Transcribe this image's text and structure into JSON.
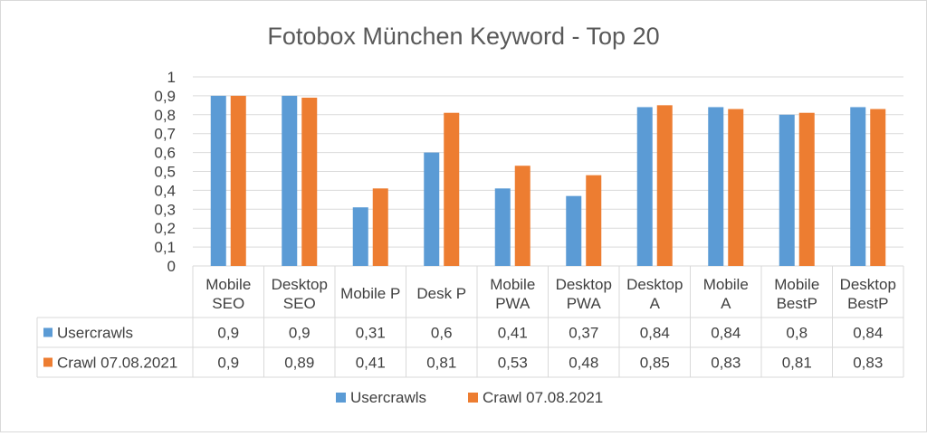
{
  "chart_data": {
    "type": "bar",
    "title": "Fotobox München Keyword - Top 20",
    "categories": [
      [
        "Mobile",
        "SEO"
      ],
      [
        "Desktop",
        "SEO"
      ],
      [
        "Mobile P"
      ],
      [
        "Desk P"
      ],
      [
        "Mobile",
        "PWA"
      ],
      [
        "Desktop",
        "PWA"
      ],
      [
        "Desktop",
        "A"
      ],
      [
        "Mobile",
        "A"
      ],
      [
        "Mobile",
        "BestP"
      ],
      [
        "Desktop",
        "BestP"
      ]
    ],
    "series": [
      {
        "name": "Usercrawls",
        "color": "#5B9BD5",
        "values": [
          0.9,
          0.9,
          0.31,
          0.6,
          0.41,
          0.37,
          0.84,
          0.84,
          0.8,
          0.84
        ],
        "labels": [
          "0,9",
          "0,9",
          "0,31",
          "0,6",
          "0,41",
          "0,37",
          "0,84",
          "0,84",
          "0,8",
          "0,84"
        ]
      },
      {
        "name": "Crawl 07.08.2021",
        "color": "#ED7D31",
        "values": [
          0.9,
          0.89,
          0.41,
          0.81,
          0.53,
          0.48,
          0.85,
          0.83,
          0.81,
          0.83
        ],
        "labels": [
          "0,9",
          "0,89",
          "0,41",
          "0,81",
          "0,53",
          "0,48",
          "0,85",
          "0,83",
          "0,81",
          "0,83"
        ]
      }
    ],
    "ylim": [
      0,
      1
    ],
    "yticks": [
      "0",
      "0,1",
      "0,2",
      "0,3",
      "0,4",
      "0,5",
      "0,6",
      "0,7",
      "0,8",
      "0,9",
      "1"
    ],
    "grid": true,
    "legend": "bottom",
    "data_table": true
  }
}
